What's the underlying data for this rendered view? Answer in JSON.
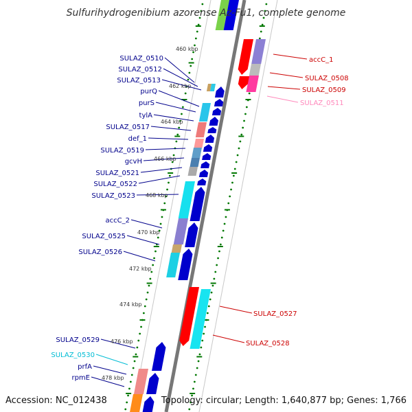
{
  "title": "Sulfurihydrogenibium azorense Az-Fu1, complete genome",
  "footer": {
    "accession": "Accession: NC_012438",
    "info": "Topology: circular; Length: 1,640,877 bp; Genes: 1,766"
  },
  "colors": {
    "forward_label": "#00008b",
    "reverse_label": "#cc0000",
    "forward_arrow": "#0000cc",
    "reverse_arrow": "#ff0000",
    "tick": "#007700",
    "backbone": "#888888"
  },
  "kbp_labels": [
    "460 kbp",
    "462 kbp",
    "464 kbp",
    "466 kbp",
    "468 kbp",
    "470 kbp",
    "472 kbp",
    "474 kbp",
    "476 kbp",
    "478 kbp"
  ],
  "left_labels": [
    {
      "text": "SULAZ_0510",
      "color": "#00008b"
    },
    {
      "text": "SULAZ_0512",
      "color": "#00008b"
    },
    {
      "text": "SULAZ_0513",
      "color": "#00008b"
    },
    {
      "text": "purQ",
      "color": "#00008b"
    },
    {
      "text": "purS",
      "color": "#00008b"
    },
    {
      "text": "tylA",
      "color": "#00008b"
    },
    {
      "text": "SULAZ_0517",
      "color": "#00008b"
    },
    {
      "text": "def_1",
      "color": "#00008b"
    },
    {
      "text": "SULAZ_0519",
      "color": "#00008b"
    },
    {
      "text": "gcvH",
      "color": "#00008b"
    },
    {
      "text": "SULAZ_0521",
      "color": "#00008b"
    },
    {
      "text": "SULAZ_0522",
      "color": "#00008b"
    },
    {
      "text": "SULAZ_0523",
      "color": "#00008b"
    },
    {
      "text": "accC_2",
      "color": "#00008b"
    },
    {
      "text": "SULAZ_0525",
      "color": "#00008b"
    },
    {
      "text": "SULAZ_0526",
      "color": "#00008b"
    },
    {
      "text": "SULAZ_0529",
      "color": "#00008b"
    },
    {
      "text": "SULAZ_0530",
      "color": "#00bcd4"
    },
    {
      "text": "prfA",
      "color": "#00008b"
    },
    {
      "text": "rpmE",
      "color": "#00008b"
    }
  ],
  "right_labels": [
    {
      "text": "accC_1",
      "color": "#cc0000"
    },
    {
      "text": "SULAZ_0508",
      "color": "#cc0000"
    },
    {
      "text": "SULAZ_0509",
      "color": "#cc0000"
    },
    {
      "text": "SULAZ_0511",
      "color": "#ff88bb"
    },
    {
      "text": "SULAZ_0527",
      "color": "#cc0000"
    },
    {
      "text": "SULAZ_0528",
      "color": "#cc0000"
    }
  ]
}
